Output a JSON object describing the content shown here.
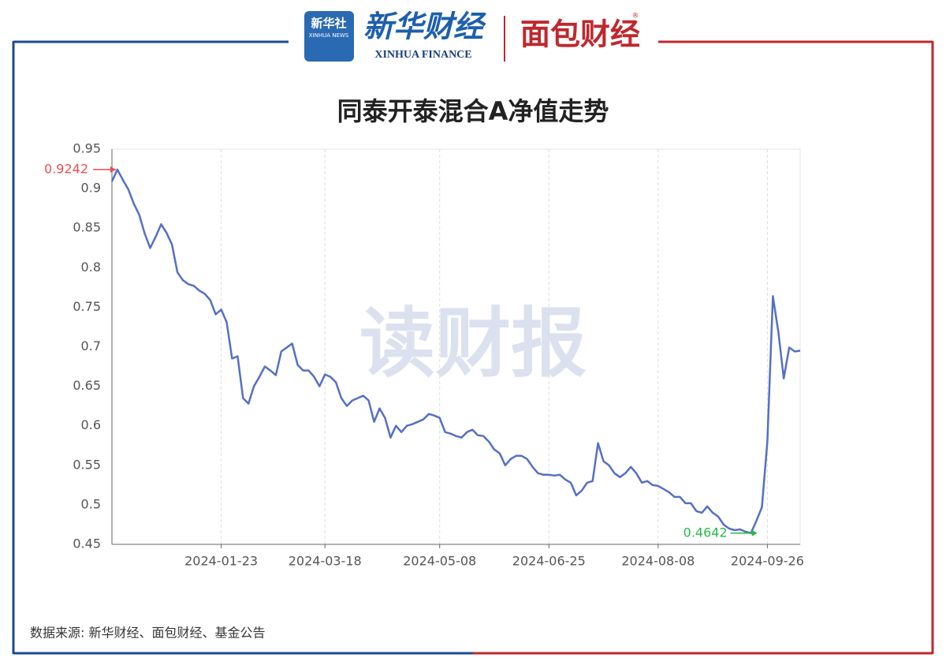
{
  "header": {
    "xinhua_news": "新华社",
    "xinhua_news_en": "XINHUA NEWS",
    "xinhua_finance": "新华财经",
    "xinhua_finance_en": "XINHUA FINANCE",
    "mianbao": "面包财经",
    "registered": "®"
  },
  "footer": {
    "source": "数据来源: 新华财经、面包财经、基金公告"
  },
  "chart_data": {
    "type": "line",
    "title": "同泰开泰混合A净值走势",
    "watermark": "读财报",
    "color": "#5470c6",
    "categories": [
      null,
      null,
      null,
      null,
      null,
      null,
      null,
      null,
      null,
      null,
      null,
      null,
      null,
      null,
      null,
      null,
      null,
      null,
      null,
      null,
      "2024-01-23",
      null,
      null,
      null,
      null,
      null,
      null,
      null,
      null,
      null,
      null,
      null,
      null,
      null,
      null,
      null,
      null,
      null,
      null,
      "2024-03-18",
      null,
      null,
      null,
      null,
      null,
      null,
      null,
      null,
      null,
      null,
      null,
      null,
      null,
      null,
      null,
      null,
      null,
      null,
      null,
      null,
      "2024-05-08",
      null,
      null,
      null,
      null,
      null,
      null,
      null,
      null,
      null,
      null,
      null,
      null,
      null,
      null,
      null,
      null,
      null,
      null,
      null,
      "2024-06-25",
      null,
      null,
      null,
      null,
      null,
      null,
      null,
      null,
      null,
      null,
      null,
      null,
      null,
      null,
      null,
      null,
      null,
      null,
      null,
      "2024-08-08",
      null,
      null,
      null,
      null,
      null,
      null,
      null,
      null,
      null,
      null,
      null,
      null,
      null,
      null,
      null,
      null,
      null,
      null,
      null,
      "2024-09-26",
      null,
      null,
      null,
      null,
      null,
      null
    ],
    "values": [
      0.909,
      0.9242,
      0.911,
      0.899,
      0.881,
      0.867,
      0.843,
      0.825,
      0.839,
      0.855,
      0.844,
      0.829,
      0.794,
      0.784,
      0.779,
      0.777,
      0.771,
      0.767,
      0.759,
      0.741,
      0.747,
      0.731,
      0.685,
      0.688,
      0.635,
      0.628,
      0.65,
      0.662,
      0.675,
      0.67,
      0.664,
      0.694,
      0.699,
      0.704,
      0.677,
      0.67,
      0.67,
      0.662,
      0.65,
      0.665,
      0.662,
      0.655,
      0.635,
      0.625,
      0.632,
      0.635,
      0.638,
      0.632,
      0.605,
      0.622,
      0.61,
      0.585,
      0.6,
      0.592,
      0.6,
      0.602,
      0.605,
      0.608,
      0.615,
      0.613,
      0.61,
      0.592,
      0.59,
      0.587,
      0.585,
      0.592,
      0.595,
      0.588,
      0.587,
      0.58,
      0.57,
      0.565,
      0.55,
      0.558,
      0.562,
      0.562,
      0.558,
      0.548,
      0.54,
      0.538,
      0.538,
      0.537,
      0.538,
      0.532,
      0.528,
      0.512,
      0.518,
      0.528,
      0.53,
      0.578,
      0.555,
      0.55,
      0.54,
      0.535,
      0.54,
      0.548,
      0.54,
      0.528,
      0.53,
      0.525,
      0.524,
      0.52,
      0.516,
      0.51,
      0.51,
      0.502,
      0.502,
      0.492,
      0.49,
      0.498,
      0.49,
      0.485,
      0.475,
      0.47,
      0.468,
      0.469,
      0.466,
      0.4642,
      0.48,
      0.497,
      0.58,
      0.764,
      0.719,
      0.66,
      0.699,
      0.694,
      0.695
    ],
    "max_label": 0.9242,
    "max_color": "#ee4d4d",
    "min_label": 0.4642,
    "min_color": "#2bb84a",
    "ylim": [
      0.45,
      0.95
    ],
    "yticks": [
      0.45,
      0.5,
      0.55,
      0.6,
      0.65,
      0.7,
      0.75,
      0.8,
      0.85,
      0.9,
      0.95
    ],
    "x_grid": true
  }
}
